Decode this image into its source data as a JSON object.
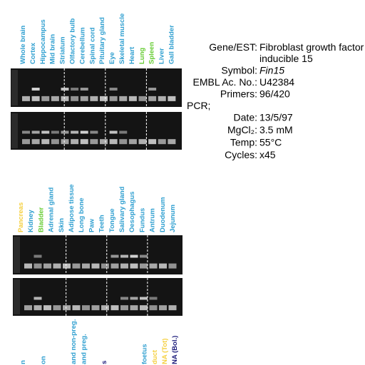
{
  "panels": [
    {
      "lanes": [
        {
          "label": "Whole brain",
          "color": "#2f9fd0"
        },
        {
          "label": "Cortex",
          "color": "#2f9fd0"
        },
        {
          "label": "Hippocampus",
          "color": "#2f9fd0"
        },
        {
          "label": "Mid brain",
          "color": "#2f9fd0"
        },
        {
          "label": "Striatum",
          "color": "#2f9fd0"
        },
        {
          "label": "Olfactory bulb",
          "color": "#2f9fd0"
        },
        {
          "label": "Cerebellum",
          "color": "#2f9fd0"
        },
        {
          "label": "Spinal cord",
          "color": "#2f9fd0"
        },
        {
          "label": "Pituitary gland",
          "color": "#2f9fd0"
        },
        {
          "label": "Eye",
          "color": "#2f9fd0"
        },
        {
          "label": "Skeletal muscle",
          "color": "#2f9fd0"
        },
        {
          "label": "Heart",
          "color": "#2f9fd0"
        },
        {
          "label": "Lung",
          "color": "#66cc33"
        },
        {
          "label": "Spleen",
          "color": "#66cc33"
        },
        {
          "label": "Liver",
          "color": "#2f9fd0"
        },
        {
          "label": "Gall bladder",
          "color": "#2f9fd0"
        }
      ]
    },
    {
      "lanes": [
        {
          "label": "Pancreas",
          "color": "#f5d040"
        },
        {
          "label": "Kidney",
          "color": "#2f9fd0"
        },
        {
          "label": "Bladder",
          "color": "#66cc33"
        },
        {
          "label": "Adrenal gland",
          "color": "#2f9fd0"
        },
        {
          "label": "Skin",
          "color": "#2f9fd0"
        },
        {
          "label": "Adipose tissue",
          "color": "#2f9fd0"
        },
        {
          "label": "Long bone",
          "color": "#2f9fd0"
        },
        {
          "label": "Paw",
          "color": "#2f9fd0"
        },
        {
          "label": "Teeth",
          "color": "#2f9fd0"
        },
        {
          "label": "Tongue",
          "color": "#2f9fd0"
        },
        {
          "label": "Salivary gland",
          "color": "#2f9fd0"
        },
        {
          "label": "Oesophagus",
          "color": "#2f9fd0"
        },
        {
          "label": "Fundus",
          "color": "#2f9fd0"
        },
        {
          "label": "Antrum",
          "color": "#2f9fd0"
        },
        {
          "label": "Duodenum",
          "color": "#2f9fd0"
        },
        {
          "label": "Jejunum",
          "color": "#2f9fd0"
        }
      ]
    },
    {
      "lanes": [
        {
          "label": "n",
          "color": "#2f9fd0",
          "pos": 1
        },
        {
          "label": "on",
          "color": "#2f9fd0",
          "pos": 3
        },
        {
          "label": "and non-preg.",
          "color": "#2f9fd0",
          "pos": 6
        },
        {
          "label": "and preg.",
          "color": "#2f9fd0",
          "pos": 7
        },
        {
          "label": "s",
          "color": "#1a1a7a",
          "pos": 9
        },
        {
          "label": "foetus",
          "color": "#2f9fd0",
          "pos": 13
        },
        {
          "label": "duct",
          "color": "#f5d040",
          "pos": 14
        },
        {
          "label": "NA (Tot)",
          "color": "#f5d040",
          "pos": 15
        },
        {
          "label": "NA (Bol.)",
          "color": "#1a1a7a",
          "pos": 16
        }
      ]
    }
  ],
  "info": {
    "rows": [
      {
        "label": "Gene/EST:",
        "value": "Fibroblast growth factor",
        "cont": "inducible 15"
      },
      {
        "label": "Symbol:",
        "value": "Fin15"
      },
      {
        "label": "EMBL Ac. No.:",
        "value": "U42384"
      },
      {
        "label": "Primers:",
        "value": "96/420"
      }
    ],
    "pcr": "PCR;",
    "pcr_rows": [
      {
        "label": "Date:",
        "value": "13/5/97"
      },
      {
        "label": "MgCl₂:",
        "value": "3.5 mM"
      },
      {
        "label": "Temp:",
        "value": "55°C"
      },
      {
        "label": "Cycles:",
        "value": "x45"
      }
    ]
  }
}
